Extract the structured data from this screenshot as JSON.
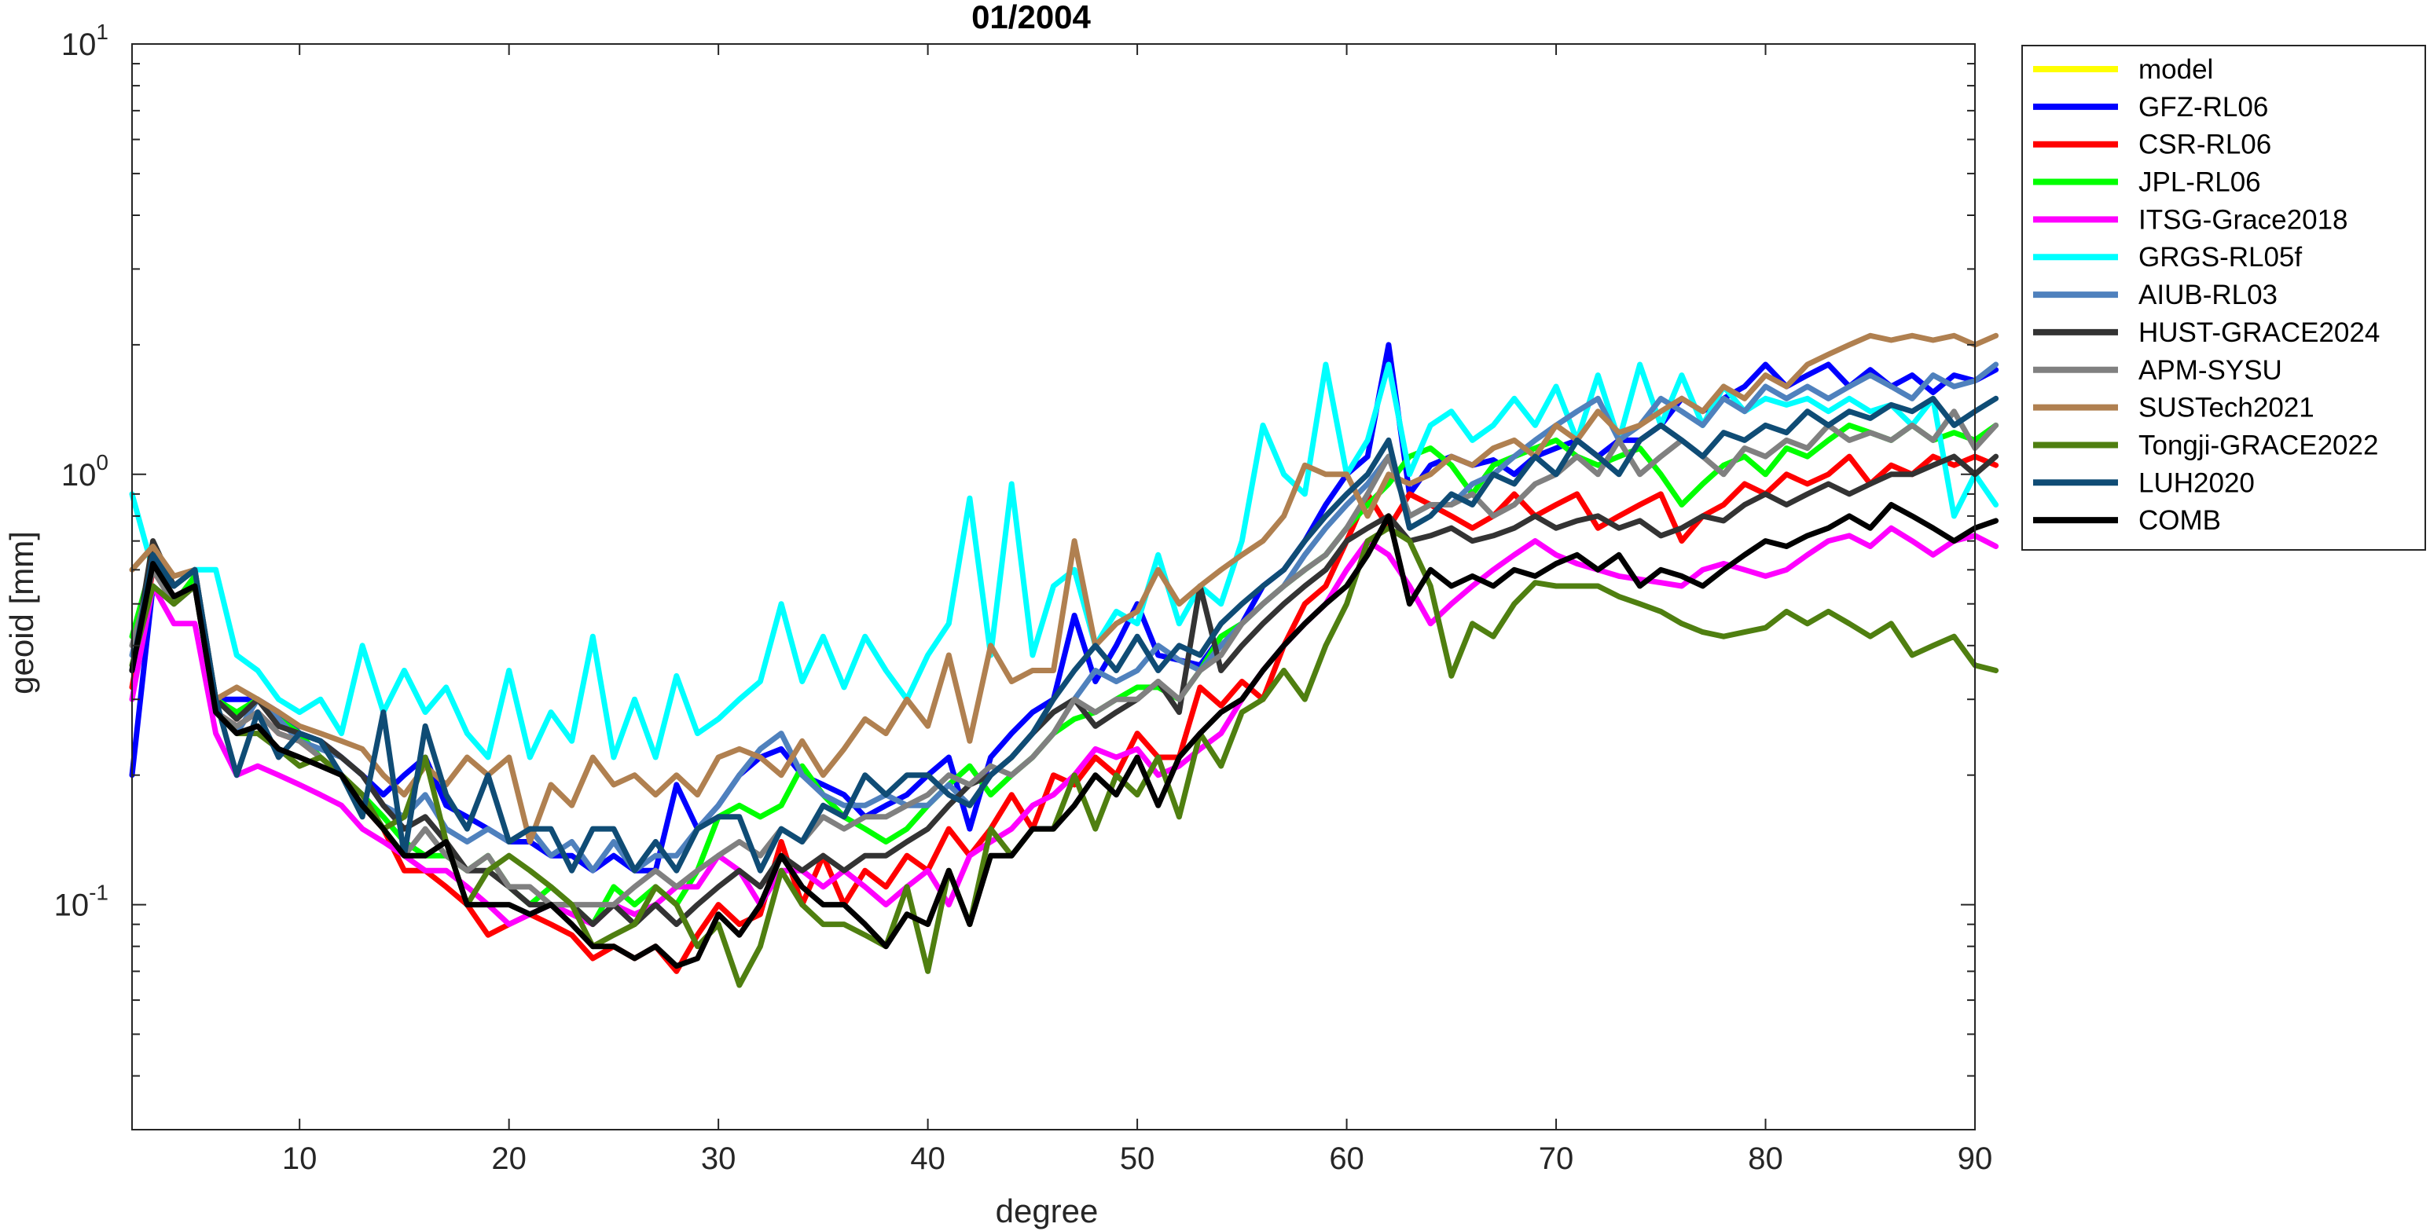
{
  "chart_data": {
    "type": "line",
    "title": "01/2004",
    "xlabel": "degree",
    "ylabel": "geoid [mm]",
    "xlim": [
      2,
      90
    ],
    "ylim": [
      0.03,
      10
    ],
    "yscale": "log",
    "xticks": [
      10,
      20,
      30,
      40,
      50,
      60,
      70,
      80,
      90
    ],
    "yticks": [
      {
        "value": 0.1,
        "base": "10",
        "exp": "-1"
      },
      {
        "value": 1,
        "base": "10",
        "exp": "0"
      },
      {
        "value": 10,
        "base": "10",
        "exp": "1"
      }
    ],
    "grid": false,
    "legend_location": "outside-right-top",
    "x_start": 2,
    "series": [
      {
        "name": "model",
        "color": "#ffff00",
        "values": []
      },
      {
        "name": "GFZ-RL06",
        "color": "#0000ff",
        "values": [
          0.2,
          0.55,
          0.5,
          0.55,
          0.3,
          0.3,
          0.3,
          0.28,
          0.25,
          0.24,
          0.22,
          0.2,
          0.18,
          0.2,
          0.22,
          0.17,
          0.16,
          0.15,
          0.14,
          0.14,
          0.13,
          0.13,
          0.12,
          0.13,
          0.12,
          0.12,
          0.19,
          0.15,
          0.17,
          0.2,
          0.22,
          0.23,
          0.2,
          0.19,
          0.18,
          0.16,
          0.17,
          0.18,
          0.2,
          0.22,
          0.15,
          0.22,
          0.25,
          0.28,
          0.3,
          0.47,
          0.33,
          0.4,
          0.5,
          0.38,
          0.37,
          0.36,
          0.42,
          0.45,
          0.55,
          0.6,
          0.7,
          0.85,
          1.0,
          1.1,
          2.0,
          0.9,
          1.05,
          1.1,
          1.05,
          1.08,
          1.0,
          1.1,
          1.15,
          1.2,
          1.1,
          1.2,
          1.2,
          1.3,
          1.5,
          1.4,
          1.5,
          1.6,
          1.8,
          1.6,
          1.7,
          1.8,
          1.6,
          1.75,
          1.6,
          1.7,
          1.55,
          1.7,
          1.65,
          1.75
        ]
      },
      {
        "name": "CSR-RL06",
        "color": "#ff0000",
        "values": [
          0.32,
          0.6,
          0.5,
          0.58,
          0.28,
          0.26,
          0.28,
          0.25,
          0.24,
          0.22,
          0.2,
          0.17,
          0.15,
          0.12,
          0.12,
          0.11,
          0.1,
          0.085,
          0.09,
          0.095,
          0.09,
          0.085,
          0.075,
          0.08,
          0.075,
          0.08,
          0.07,
          0.085,
          0.1,
          0.09,
          0.095,
          0.14,
          0.1,
          0.13,
          0.1,
          0.12,
          0.11,
          0.13,
          0.12,
          0.15,
          0.13,
          0.15,
          0.18,
          0.15,
          0.2,
          0.19,
          0.22,
          0.2,
          0.25,
          0.22,
          0.22,
          0.32,
          0.29,
          0.33,
          0.3,
          0.4,
          0.5,
          0.55,
          0.7,
          0.9,
          0.75,
          0.9,
          0.85,
          0.8,
          0.75,
          0.8,
          0.9,
          0.8,
          0.85,
          0.9,
          0.75,
          0.8,
          0.85,
          0.9,
          0.7,
          0.8,
          0.85,
          0.95,
          0.9,
          1.0,
          0.95,
          1.0,
          1.1,
          0.95,
          1.05,
          1.0,
          1.1,
          1.05,
          1.1,
          1.05
        ]
      },
      {
        "name": "JPL-RL06",
        "color": "#00ff00",
        "values": [
          0.42,
          0.63,
          0.5,
          0.58,
          0.3,
          0.28,
          0.3,
          0.27,
          0.25,
          0.22,
          0.2,
          0.18,
          0.16,
          0.14,
          0.13,
          0.13,
          0.12,
          0.13,
          0.11,
          0.1,
          0.11,
          0.1,
          0.09,
          0.11,
          0.1,
          0.11,
          0.1,
          0.12,
          0.16,
          0.17,
          0.16,
          0.17,
          0.21,
          0.18,
          0.16,
          0.15,
          0.14,
          0.15,
          0.17,
          0.19,
          0.21,
          0.18,
          0.2,
          0.22,
          0.25,
          0.27,
          0.28,
          0.3,
          0.32,
          0.32,
          0.3,
          0.35,
          0.42,
          0.45,
          0.5,
          0.55,
          0.6,
          0.65,
          0.75,
          0.85,
          0.95,
          1.1,
          1.15,
          1.05,
          0.9,
          1.05,
          1.1,
          1.15,
          1.2,
          1.1,
          1.05,
          1.1,
          1.15,
          1.0,
          0.85,
          0.95,
          1.05,
          1.1,
          1.0,
          1.15,
          1.1,
          1.2,
          1.3,
          1.25,
          1.2,
          1.3,
          1.2,
          1.25,
          1.2,
          1.3
        ]
      },
      {
        "name": "ITSG-Grace2018",
        "color": "#ff00ff",
        "values": [
          0.3,
          0.55,
          0.45,
          0.45,
          0.25,
          0.2,
          0.21,
          0.2,
          0.19,
          0.18,
          0.17,
          0.15,
          0.14,
          0.13,
          0.12,
          0.12,
          0.11,
          0.1,
          0.09,
          0.095,
          0.1,
          0.095,
          0.09,
          0.1,
          0.095,
          0.1,
          0.11,
          0.11,
          0.13,
          0.12,
          0.1,
          0.12,
          0.12,
          0.11,
          0.12,
          0.11,
          0.1,
          0.11,
          0.12,
          0.1,
          0.13,
          0.14,
          0.15,
          0.17,
          0.18,
          0.2,
          0.23,
          0.22,
          0.23,
          0.2,
          0.21,
          0.23,
          0.25,
          0.3,
          0.35,
          0.4,
          0.45,
          0.5,
          0.6,
          0.7,
          0.65,
          0.55,
          0.45,
          0.5,
          0.55,
          0.6,
          0.65,
          0.7,
          0.65,
          0.62,
          0.6,
          0.58,
          0.57,
          0.56,
          0.55,
          0.6,
          0.62,
          0.6,
          0.58,
          0.6,
          0.65,
          0.7,
          0.72,
          0.68,
          0.75,
          0.7,
          0.65,
          0.7,
          0.72,
          0.68
        ]
      },
      {
        "name": "GRGS-RL05f",
        "color": "#00ffff",
        "values": [
          0.9,
          0.6,
          0.55,
          0.6,
          0.6,
          0.38,
          0.35,
          0.3,
          0.28,
          0.3,
          0.25,
          0.4,
          0.28,
          0.35,
          0.28,
          0.32,
          0.25,
          0.22,
          0.35,
          0.22,
          0.28,
          0.24,
          0.42,
          0.22,
          0.3,
          0.22,
          0.34,
          0.25,
          0.27,
          0.3,
          0.33,
          0.5,
          0.33,
          0.42,
          0.32,
          0.42,
          0.35,
          0.3,
          0.38,
          0.45,
          0.88,
          0.38,
          0.95,
          0.38,
          0.55,
          0.6,
          0.4,
          0.48,
          0.45,
          0.65,
          0.45,
          0.55,
          0.5,
          0.7,
          1.3,
          1.0,
          0.9,
          1.8,
          1.0,
          1.2,
          1.8,
          1.0,
          1.3,
          1.4,
          1.2,
          1.3,
          1.5,
          1.3,
          1.6,
          1.2,
          1.7,
          1.2,
          1.8,
          1.3,
          1.7,
          1.3,
          1.6,
          1.4,
          1.5,
          1.45,
          1.5,
          1.4,
          1.5,
          1.4,
          1.45,
          1.3,
          1.5,
          0.8,
          1.0,
          0.85
        ]
      },
      {
        "name": "AIUB-RL03",
        "color": "#4f81bd",
        "values": [
          0.38,
          0.6,
          0.55,
          0.6,
          0.28,
          0.25,
          0.3,
          0.27,
          0.24,
          0.23,
          0.22,
          0.2,
          0.17,
          0.16,
          0.18,
          0.15,
          0.14,
          0.15,
          0.14,
          0.15,
          0.13,
          0.14,
          0.12,
          0.14,
          0.12,
          0.13,
          0.13,
          0.15,
          0.17,
          0.2,
          0.23,
          0.25,
          0.2,
          0.18,
          0.17,
          0.17,
          0.18,
          0.17,
          0.17,
          0.19,
          0.17,
          0.2,
          0.22,
          0.25,
          0.28,
          0.3,
          0.35,
          0.33,
          0.35,
          0.4,
          0.37,
          0.35,
          0.4,
          0.45,
          0.5,
          0.55,
          0.65,
          0.75,
          0.85,
          0.95,
          1.1,
          0.8,
          0.85,
          0.85,
          0.95,
          1.0,
          1.1,
          1.2,
          1.3,
          1.4,
          1.5,
          1.2,
          1.3,
          1.5,
          1.4,
          1.3,
          1.5,
          1.4,
          1.6,
          1.5,
          1.6,
          1.5,
          1.6,
          1.7,
          1.6,
          1.5,
          1.7,
          1.6,
          1.65,
          1.8
        ]
      },
      {
        "name": "HUST-GRACE2024",
        "color": "#333333",
        "values": [
          0.35,
          0.7,
          0.55,
          0.6,
          0.3,
          0.27,
          0.3,
          0.26,
          0.25,
          0.24,
          0.22,
          0.2,
          0.17,
          0.15,
          0.16,
          0.14,
          0.12,
          0.12,
          0.11,
          0.1,
          0.1,
          0.1,
          0.09,
          0.1,
          0.09,
          0.1,
          0.09,
          0.1,
          0.11,
          0.12,
          0.11,
          0.13,
          0.12,
          0.13,
          0.12,
          0.13,
          0.13,
          0.14,
          0.15,
          0.17,
          0.19,
          0.2,
          0.22,
          0.25,
          0.28,
          0.3,
          0.26,
          0.28,
          0.3,
          0.33,
          0.28,
          0.55,
          0.35,
          0.4,
          0.45,
          0.5,
          0.55,
          0.6,
          0.7,
          0.75,
          0.8,
          0.7,
          0.72,
          0.75,
          0.7,
          0.72,
          0.75,
          0.8,
          0.75,
          0.78,
          0.8,
          0.75,
          0.78,
          0.72,
          0.75,
          0.8,
          0.78,
          0.85,
          0.9,
          0.85,
          0.9,
          0.95,
          0.9,
          0.95,
          1.0,
          1.0,
          1.05,
          1.1,
          1.0,
          1.1
        ]
      },
      {
        "name": "APM-SYSU",
        "color": "#808080",
        "values": [
          0.4,
          0.6,
          0.5,
          0.55,
          0.28,
          0.26,
          0.28,
          0.25,
          0.24,
          0.22,
          0.2,
          0.18,
          0.15,
          0.13,
          0.15,
          0.13,
          0.12,
          0.13,
          0.11,
          0.11,
          0.1,
          0.1,
          0.1,
          0.1,
          0.11,
          0.12,
          0.11,
          0.12,
          0.13,
          0.14,
          0.13,
          0.15,
          0.14,
          0.16,
          0.15,
          0.16,
          0.16,
          0.17,
          0.18,
          0.2,
          0.19,
          0.21,
          0.2,
          0.22,
          0.25,
          0.3,
          0.28,
          0.3,
          0.3,
          0.33,
          0.3,
          0.35,
          0.38,
          0.45,
          0.5,
          0.55,
          0.6,
          0.65,
          0.75,
          0.9,
          1.1,
          0.8,
          0.85,
          0.85,
          0.9,
          0.8,
          0.85,
          0.95,
          1.0,
          1.1,
          1.0,
          1.2,
          1.0,
          1.1,
          1.2,
          1.1,
          1.0,
          1.15,
          1.1,
          1.2,
          1.15,
          1.3,
          1.2,
          1.25,
          1.2,
          1.3,
          1.2,
          1.4,
          1.15,
          1.3
        ]
      },
      {
        "name": "SUSTech2021",
        "color": "#b08050",
        "values": [
          0.6,
          0.68,
          0.58,
          0.6,
          0.3,
          0.32,
          0.3,
          0.28,
          0.26,
          0.25,
          0.24,
          0.23,
          0.2,
          0.18,
          0.21,
          0.19,
          0.22,
          0.2,
          0.22,
          0.14,
          0.19,
          0.17,
          0.22,
          0.19,
          0.2,
          0.18,
          0.2,
          0.18,
          0.22,
          0.23,
          0.22,
          0.2,
          0.24,
          0.2,
          0.23,
          0.27,
          0.25,
          0.3,
          0.26,
          0.38,
          0.24,
          0.4,
          0.33,
          0.35,
          0.35,
          0.7,
          0.4,
          0.45,
          0.48,
          0.6,
          0.5,
          0.55,
          0.6,
          0.65,
          0.7,
          0.8,
          1.05,
          1.0,
          1.0,
          0.8,
          1.0,
          0.95,
          1.0,
          1.1,
          1.05,
          1.15,
          1.2,
          1.1,
          1.3,
          1.2,
          1.4,
          1.25,
          1.3,
          1.4,
          1.5,
          1.4,
          1.6,
          1.5,
          1.7,
          1.6,
          1.8,
          1.9,
          2.0,
          2.1,
          2.05,
          2.1,
          2.05,
          2.1,
          2.0,
          2.1
        ]
      },
      {
        "name": "Tongji-GRACE2022",
        "color": "#4f7f10",
        "values": [
          0.36,
          0.55,
          0.5,
          0.55,
          0.28,
          0.25,
          0.25,
          0.23,
          0.21,
          0.22,
          0.2,
          0.18,
          0.15,
          0.16,
          0.22,
          0.14,
          0.1,
          0.12,
          0.13,
          0.12,
          0.11,
          0.1,
          0.08,
          0.085,
          0.09,
          0.11,
          0.1,
          0.08,
          0.09,
          0.065,
          0.08,
          0.12,
          0.1,
          0.09,
          0.09,
          0.085,
          0.08,
          0.11,
          0.07,
          0.12,
          0.09,
          0.15,
          0.13,
          0.15,
          0.15,
          0.2,
          0.15,
          0.2,
          0.18,
          0.22,
          0.16,
          0.25,
          0.21,
          0.28,
          0.3,
          0.35,
          0.3,
          0.4,
          0.5,
          0.7,
          0.75,
          0.7,
          0.55,
          0.34,
          0.45,
          0.42,
          0.5,
          0.56,
          0.55,
          0.55,
          0.55,
          0.52,
          0.5,
          0.48,
          0.45,
          0.43,
          0.42,
          0.43,
          0.44,
          0.48,
          0.45,
          0.48,
          0.45,
          0.42,
          0.45,
          0.38,
          0.4,
          0.42,
          0.36,
          0.35
        ]
      },
      {
        "name": "LUH2020",
        "color": "#0f4c75",
        "values": [
          0.35,
          0.65,
          0.55,
          0.6,
          0.3,
          0.2,
          0.28,
          0.22,
          0.25,
          0.24,
          0.2,
          0.16,
          0.28,
          0.13,
          0.26,
          0.18,
          0.15,
          0.2,
          0.14,
          0.15,
          0.15,
          0.12,
          0.15,
          0.15,
          0.12,
          0.14,
          0.12,
          0.15,
          0.16,
          0.16,
          0.12,
          0.15,
          0.14,
          0.17,
          0.16,
          0.2,
          0.18,
          0.2,
          0.2,
          0.18,
          0.17,
          0.2,
          0.22,
          0.25,
          0.3,
          0.35,
          0.4,
          0.35,
          0.42,
          0.35,
          0.4,
          0.38,
          0.45,
          0.5,
          0.55,
          0.6,
          0.7,
          0.8,
          0.9,
          1.0,
          1.2,
          0.75,
          0.8,
          0.9,
          0.85,
          1.0,
          0.95,
          1.1,
          1.0,
          1.2,
          1.1,
          1.0,
          1.2,
          1.3,
          1.2,
          1.1,
          1.25,
          1.2,
          1.3,
          1.25,
          1.4,
          1.3,
          1.4,
          1.35,
          1.45,
          1.4,
          1.5,
          1.3,
          1.4,
          1.5
        ]
      },
      {
        "name": "COMB",
        "color": "#000000",
        "values": [
          0.35,
          0.62,
          0.52,
          0.55,
          0.28,
          0.25,
          0.26,
          0.23,
          0.22,
          0.21,
          0.2,
          0.17,
          0.15,
          0.13,
          0.13,
          0.14,
          0.1,
          0.1,
          0.1,
          0.095,
          0.1,
          0.09,
          0.08,
          0.08,
          0.075,
          0.08,
          0.072,
          0.075,
          0.095,
          0.085,
          0.1,
          0.13,
          0.11,
          0.1,
          0.1,
          0.09,
          0.08,
          0.095,
          0.09,
          0.12,
          0.09,
          0.13,
          0.13,
          0.15,
          0.15,
          0.17,
          0.2,
          0.18,
          0.22,
          0.17,
          0.22,
          0.25,
          0.28,
          0.3,
          0.35,
          0.4,
          0.45,
          0.5,
          0.55,
          0.65,
          0.8,
          0.5,
          0.6,
          0.55,
          0.58,
          0.55,
          0.6,
          0.58,
          0.62,
          0.65,
          0.6,
          0.65,
          0.55,
          0.6,
          0.58,
          0.55,
          0.6,
          0.65,
          0.7,
          0.68,
          0.72,
          0.75,
          0.8,
          0.75,
          0.85,
          0.8,
          0.75,
          0.7,
          0.75,
          0.78
        ]
      }
    ]
  }
}
